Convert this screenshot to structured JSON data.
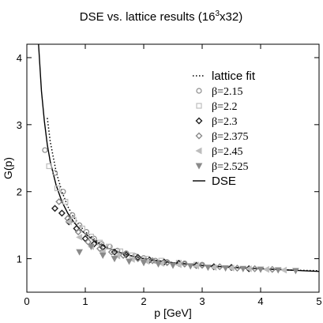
{
  "chart_data": {
    "type": "scatter",
    "title": {
      "main": "DSE vs. lattice results (16",
      "sup": "3",
      "rest": "x32)"
    },
    "xlabel": "p [GeV]",
    "ylabel": "G(p)",
    "xlim": [
      0,
      5
    ],
    "ylim": [
      0.5,
      4.2
    ],
    "x_ticks": [
      0,
      1,
      2,
      3,
      4,
      5
    ],
    "y_ticks": [
      1,
      2,
      3,
      4
    ],
    "grid": false,
    "legend_position": "upper-right",
    "colors": {
      "light_gray": "#bdbdbd",
      "mid_gray": "#8a8a8a",
      "dark": "#202020",
      "line": "#000000"
    },
    "series": [
      {
        "name": "lattice fit",
        "style": "dotted-line",
        "x": [
          0.35,
          0.4,
          0.5,
          0.6,
          0.7,
          0.8,
          0.9,
          1.0,
          1.2,
          1.4,
          1.6,
          1.8,
          2.0,
          2.3,
          2.6,
          3.0,
          3.5,
          4.0,
          4.5,
          5.0
        ],
        "y": [
          3.1,
          2.75,
          2.3,
          2.0,
          1.78,
          1.62,
          1.5,
          1.4,
          1.26,
          1.16,
          1.09,
          1.04,
          1.0,
          0.96,
          0.93,
          0.9,
          0.87,
          0.85,
          0.83,
          0.82
        ]
      },
      {
        "name": "β=2.15",
        "marker": "circle",
        "x": [
          0.31,
          0.48,
          0.62,
          0.78,
          0.9,
          1.02,
          1.15,
          1.28,
          1.42,
          1.55,
          1.7,
          1.85,
          2.0,
          2.2,
          2.4,
          2.7,
          3.0
        ],
        "y": [
          2.62,
          2.28,
          2.0,
          1.65,
          1.5,
          1.4,
          1.3,
          1.22,
          1.18,
          1.12,
          1.08,
          1.04,
          1.01,
          0.97,
          0.95,
          0.93,
          0.91
        ]
      },
      {
        "name": "β=2.2",
        "marker": "square",
        "x": [
          0.38,
          0.52,
          0.66,
          0.8,
          0.95,
          1.1,
          1.25,
          1.4,
          1.6,
          1.8,
          2.05,
          2.3,
          2.6,
          2.9
        ],
        "y": [
          2.38,
          2.05,
          1.85,
          1.58,
          1.45,
          1.33,
          1.24,
          1.18,
          1.11,
          1.05,
          1.0,
          0.97,
          0.94,
          0.91
        ]
      },
      {
        "name": "β=2.3",
        "marker": "diamond",
        "x": [
          0.48,
          0.6,
          0.72,
          0.85,
          1.0,
          1.15,
          1.3,
          1.5,
          1.7,
          1.9,
          2.1,
          2.35,
          2.6,
          2.9,
          3.2,
          3.5,
          3.8
        ],
        "y": [
          1.75,
          1.68,
          1.55,
          1.45,
          1.3,
          1.22,
          1.17,
          1.1,
          1.06,
          1.02,
          0.98,
          0.95,
          0.93,
          0.9,
          0.88,
          0.87,
          0.85
        ]
      },
      {
        "name": "β=2.375",
        "marker": "diamond",
        "x": [
          0.55,
          0.7,
          0.88,
          1.05,
          1.25,
          1.45,
          1.65,
          1.9,
          2.15,
          2.4,
          2.7,
          3.0,
          3.3,
          3.6,
          3.9,
          4.2
        ],
        "y": [
          1.85,
          1.6,
          1.4,
          1.25,
          1.15,
          1.1,
          1.05,
          1.0,
          0.97,
          0.94,
          0.92,
          0.9,
          0.88,
          0.86,
          0.85,
          0.84
        ]
      },
      {
        "name": "β=2.45",
        "marker": "triangle-left",
        "x": [
          0.72,
          0.9,
          1.1,
          1.3,
          1.55,
          1.8,
          2.05,
          2.3,
          2.6,
          2.9,
          3.2,
          3.5,
          3.8,
          4.1,
          4.4
        ],
        "y": [
          1.55,
          1.32,
          1.18,
          1.1,
          1.04,
          0.99,
          0.96,
          0.93,
          0.91,
          0.89,
          0.87,
          0.86,
          0.85,
          0.84,
          0.83
        ]
      },
      {
        "name": "β=2.525",
        "marker": "triangle-down",
        "x": [
          0.9,
          1.1,
          1.3,
          1.5,
          1.75,
          2.0,
          2.25,
          2.5,
          2.8,
          3.1,
          3.4,
          3.7,
          4.0,
          4.3,
          4.6
        ],
        "y": [
          1.1,
          1.18,
          1.05,
          1.0,
          0.96,
          0.94,
          0.92,
          0.9,
          0.89,
          0.87,
          0.86,
          0.85,
          0.84,
          0.83,
          0.82
        ]
      },
      {
        "name": "DSE",
        "style": "solid-line",
        "x": [
          0.2,
          0.25,
          0.3,
          0.35,
          0.4,
          0.5,
          0.6,
          0.7,
          0.8,
          0.9,
          1.0,
          1.2,
          1.4,
          1.6,
          1.8,
          2.0,
          2.5,
          3.0,
          3.5,
          4.0,
          4.5,
          5.0
        ],
        "y": [
          4.2,
          3.5,
          3.05,
          2.7,
          2.45,
          2.1,
          1.85,
          1.68,
          1.55,
          1.45,
          1.37,
          1.24,
          1.15,
          1.09,
          1.04,
          1.0,
          0.94,
          0.9,
          0.87,
          0.85,
          0.83,
          0.81
        ]
      }
    ]
  }
}
